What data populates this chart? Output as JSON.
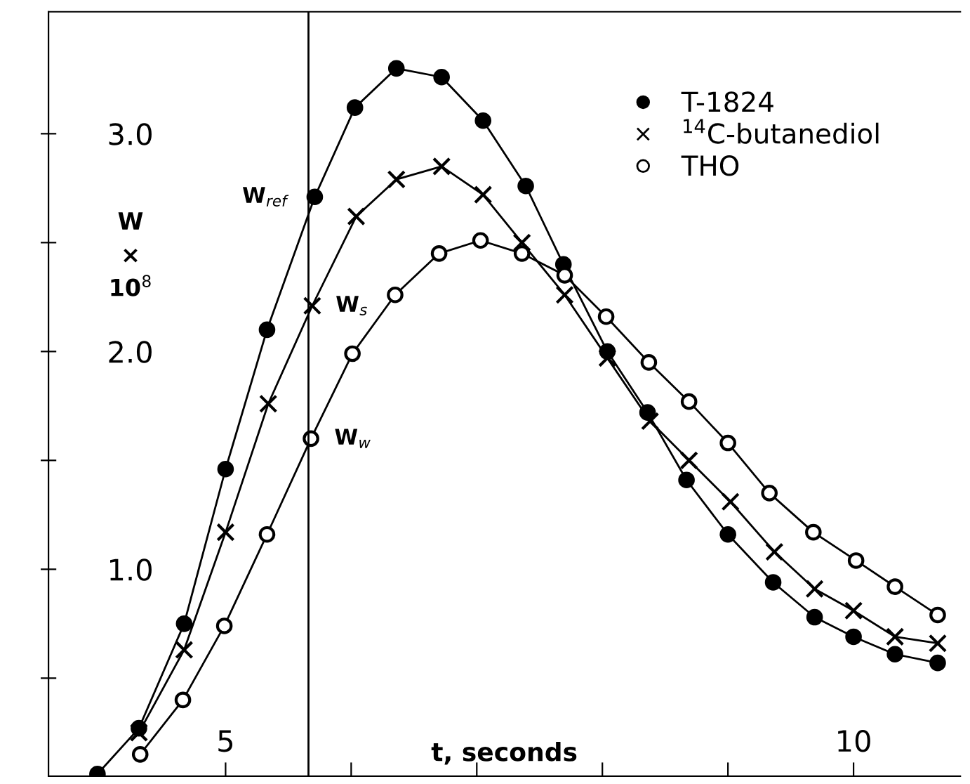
{
  "chart_data": {
    "type": "line",
    "xlabel": "t, seconds",
    "ylabel": "W\n×\n10$^{8}$",
    "xlim": [
      3.59,
      10.85
    ],
    "ylim": [
      0.05,
      3.56
    ],
    "xticks": [
      5,
      {
        "value": 6,
        "label": null
      },
      {
        "value": 7,
        "label": null
      },
      {
        "value": 8,
        "label": null
      },
      {
        "value": 9,
        "label": null
      },
      10
    ],
    "yticks": [
      {
        "value": 0.5,
        "label": null
      },
      {
        "value": 1.0,
        "label": "1.0"
      },
      {
        "value": 1.5,
        "label": null
      },
      {
        "value": 2.0,
        "label": "2.0"
      },
      {
        "value": 2.5,
        "label": null
      },
      {
        "value": 3.0,
        "label": "3.0"
      }
    ],
    "grid": false,
    "legend": "top right",
    "line_style": "solid",
    "series": [
      {
        "name": "T-1824",
        "color": "#000000",
        "marker": "circle",
        "x": [
          3.98,
          4.31,
          4.67,
          5.0,
          5.33,
          5.71,
          6.03,
          6.36,
          6.72,
          7.05,
          7.39,
          7.69,
          8.04,
          8.36,
          8.67,
          9.0,
          9.36,
          9.69,
          10.0,
          10.33,
          10.67
        ],
        "values": [
          0.06,
          0.27,
          0.75,
          1.46,
          2.1,
          2.71,
          3.12,
          3.3,
          3.26,
          3.06,
          2.76,
          2.4,
          2.0,
          1.72,
          1.41,
          1.16,
          0.94,
          0.78,
          0.69,
          0.61,
          0.57
        ]
      },
      {
        "name": "$^{14}$C-butanediol",
        "color": "#000000",
        "marker": "cross",
        "x": [
          4.31,
          4.67,
          5.0,
          5.34,
          5.69,
          6.04,
          6.36,
          6.72,
          7.05,
          7.36,
          7.7,
          8.04,
          8.38,
          8.69,
          9.02,
          9.37,
          9.69,
          10.0,
          10.33,
          10.67
        ],
        "values": [
          0.25,
          0.63,
          1.17,
          1.76,
          2.21,
          2.62,
          2.79,
          2.85,
          2.72,
          2.5,
          2.26,
          1.97,
          1.68,
          1.5,
          1.31,
          1.08,
          0.91,
          0.81,
          0.69,
          0.66
        ]
      },
      {
        "name": "THO",
        "color": "#000000",
        "marker": "circle",
        "x": [
          4.32,
          4.66,
          4.99,
          5.33,
          5.68,
          6.01,
          6.35,
          6.7,
          7.03,
          7.36,
          7.7,
          8.03,
          8.37,
          8.69,
          9.0,
          9.33,
          9.68,
          10.02,
          10.33,
          10.67
        ],
        "values": [
          0.15,
          0.4,
          0.74,
          1.16,
          1.6,
          1.99,
          2.26,
          2.45,
          2.51,
          2.45,
          2.35,
          2.16,
          1.95,
          1.77,
          1.58,
          1.35,
          1.17,
          1.04,
          0.92,
          0.79
        ]
      }
    ],
    "ref_lines": [
      {
        "axis": "x",
        "value": 5.66,
        "color": "#000000"
      }
    ],
    "annotations": [
      {
        "text": "W$_{ref}$",
        "x": 5.71,
        "y": 2.71
      },
      {
        "text": "W$_{s}$",
        "x": 5.69,
        "y": 2.21
      },
      {
        "text": "W$_{w}$",
        "x": 5.68,
        "y": 1.6
      }
    ]
  }
}
